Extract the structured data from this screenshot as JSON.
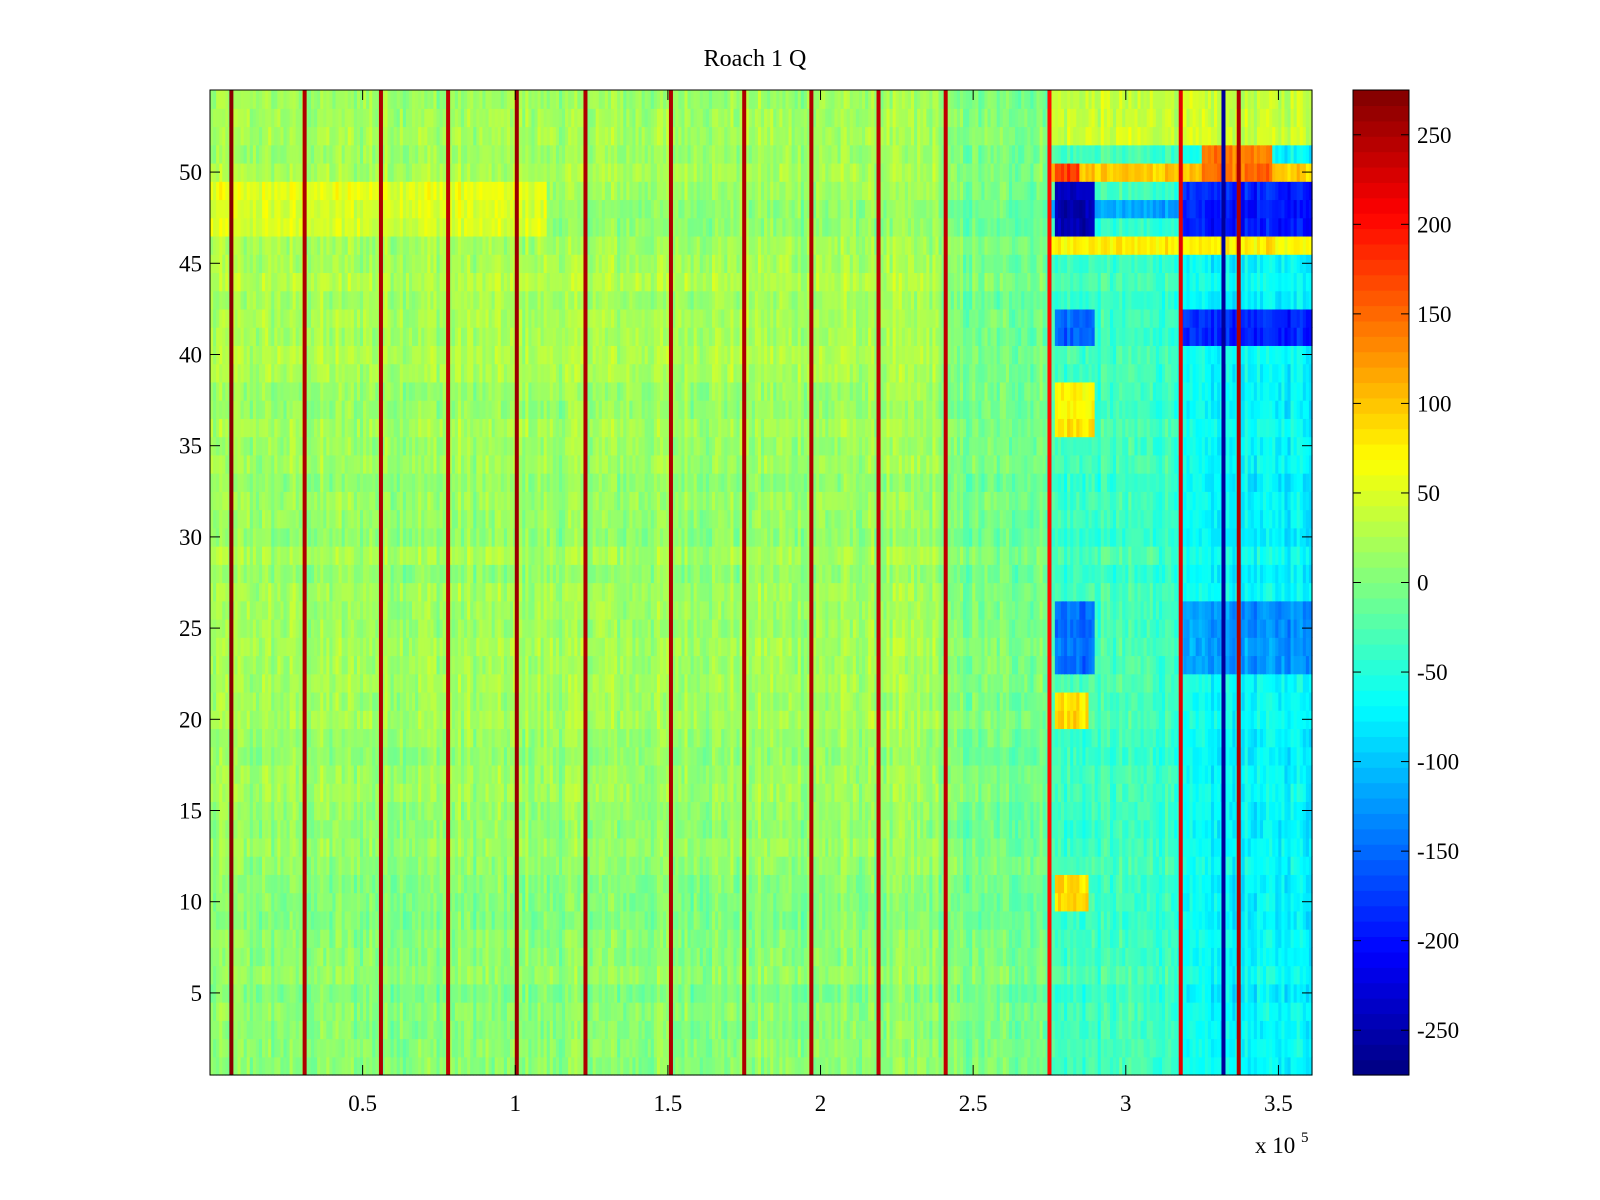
{
  "chart_data": {
    "type": "heatmap",
    "title": "Roach 1 Q",
    "xlabel": "",
    "ylabel": "",
    "x_range": [
      0,
      361000
    ],
    "y_range": [
      0.5,
      54.5
    ],
    "x_ticks": [
      50000,
      100000,
      150000,
      200000,
      250000,
      300000,
      350000
    ],
    "x_tick_labels": [
      "0.5",
      "1",
      "1.5",
      "2",
      "2.5",
      "3",
      "3.5"
    ],
    "x_multiplier": {
      "base": "x 10",
      "exponent": "5"
    },
    "y_ticks": [
      5,
      10,
      15,
      20,
      25,
      30,
      35,
      40,
      45,
      50
    ],
    "y_tick_labels": [
      "5",
      "10",
      "15",
      "20",
      "25",
      "30",
      "35",
      "40",
      "45",
      "50"
    ],
    "rows": 54,
    "colormap": "jet",
    "clim": [
      -275,
      275
    ],
    "colorbar": {
      "ticks": [
        250,
        200,
        150,
        100,
        50,
        0,
        -50,
        -100,
        -150,
        -200,
        -250
      ],
      "tick_labels": [
        "250",
        "200",
        "150",
        "100",
        "50",
        "0",
        "-50",
        "-100",
        "-150",
        "-200",
        "-250"
      ]
    },
    "base_level": 15,
    "noise_amplitude": 28,
    "regions": [
      {
        "x": [
          0,
          275000
        ],
        "rows": [
          0,
          54
        ],
        "level": 15
      },
      {
        "x": [
          0,
          110000
        ],
        "rows": [
          46,
          49
        ],
        "level": 55
      },
      {
        "x": [
          0,
          275000
        ],
        "rows": [
          38,
          45
        ],
        "level": 25
      },
      {
        "x": [
          0,
          240000
        ],
        "rows": [
          0,
          12
        ],
        "level": 5
      },
      {
        "x": [
          240000,
          275000
        ],
        "rows": [
          0,
          54
        ],
        "level": -5
      },
      {
        "x": [
          275000,
          318000
        ],
        "rows": [
          0,
          54
        ],
        "level": -35
      },
      {
        "x": [
          318000,
          361000
        ],
        "rows": [
          0,
          54
        ],
        "level": -70
      },
      {
        "x": [
          275000,
          361000
        ],
        "rows": [
          47,
          48
        ],
        "level": -110
      },
      {
        "x": [
          277000,
          290000
        ],
        "rows": [
          46,
          49
        ],
        "level": -240
      },
      {
        "x": [
          318000,
          361000
        ],
        "rows": [
          46,
          49
        ],
        "level": -190
      },
      {
        "x": [
          318000,
          361000
        ],
        "rows": [
          40,
          42
        ],
        "level": -185
      },
      {
        "x": [
          277000,
          290000
        ],
        "rows": [
          40,
          42
        ],
        "level": -150
      },
      {
        "x": [
          275000,
          361000
        ],
        "rows": [
          49,
          50
        ],
        "level": 90
      },
      {
        "x": [
          277000,
          285000
        ],
        "rows": [
          49,
          50
        ],
        "level": 170
      },
      {
        "x": [
          325000,
          348000
        ],
        "rows": [
          49,
          52
        ],
        "level": 140
      },
      {
        "x": [
          275000,
          361000
        ],
        "rows": [
          45,
          46
        ],
        "level": 70
      },
      {
        "x": [
          275000,
          361000
        ],
        "rows": [
          51,
          54
        ],
        "level": 35
      },
      {
        "x": [
          277000,
          288000
        ],
        "rows": [
          9,
          11
        ],
        "level": 90
      },
      {
        "x": [
          277000,
          288000
        ],
        "rows": [
          19,
          21
        ],
        "level": 85
      },
      {
        "x": [
          277000,
          290000
        ],
        "rows": [
          35,
          38
        ],
        "level": 75
      },
      {
        "x": [
          277000,
          290000
        ],
        "rows": [
          22,
          26
        ],
        "level": -150
      },
      {
        "x": [
          318000,
          361000
        ],
        "rows": [
          22,
          26
        ],
        "level": -130
      }
    ],
    "stripes": [
      {
        "x": 7000,
        "level": 270
      },
      {
        "x": 31000,
        "level": 250
      },
      {
        "x": 56000,
        "level": 250
      },
      {
        "x": 78000,
        "level": 240
      },
      {
        "x": 100500,
        "level": 260
      },
      {
        "x": 123000,
        "level": 250
      },
      {
        "x": 151000,
        "level": 250
      },
      {
        "x": 175000,
        "level": 250
      },
      {
        "x": 197000,
        "level": 250
      },
      {
        "x": 219000,
        "level": 240
      },
      {
        "x": 241000,
        "level": 240
      },
      {
        "x": 275000,
        "level": 200
      },
      {
        "x": 318000,
        "level": 220
      },
      {
        "x": 332000,
        "level": -260
      },
      {
        "x": 337000,
        "level": 250
      }
    ]
  }
}
